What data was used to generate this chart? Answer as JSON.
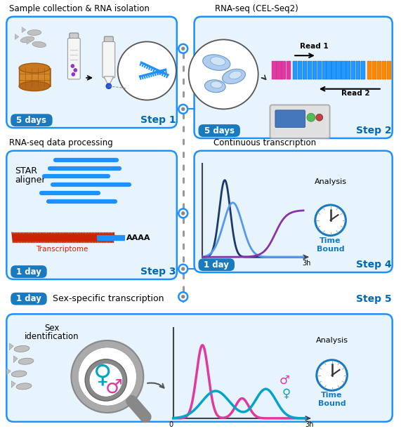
{
  "bg_color": "#ffffff",
  "blue_border": "#1e90ff",
  "blue_fill": "#e8f4fd",
  "dark_blue": "#0069b4",
  "timeline_dot_color": "#888888",
  "step_badge_color": "#1a7abf",
  "days_badge_color": "#1a7abf",
  "panel1_title": "Sample collection & RNA isolation",
  "panel2_title": "RNA-seq (CEL-Seq2)",
  "panel3_title": "RNA-seq data processing",
  "panel4_title": "Continuous transcription",
  "panel5_title": "Sex-specific transcription",
  "step1_days": "5 days",
  "step1_label": "Step 1",
  "step2_days": "5 days",
  "step2_label": "Step 2",
  "step3_days": "1 day",
  "step3_label": "Step 3",
  "step4_days": "1 day",
  "step4_label": "Step 4",
  "step5_days": "1 day",
  "step5_label": "Step 5",
  "time_bound_color": "#1a7abf",
  "magenta_color": "#e0399f",
  "cyan_color": "#00a5c8",
  "dark_navy": "#1a3a6b",
  "red_color": "#cc2200"
}
